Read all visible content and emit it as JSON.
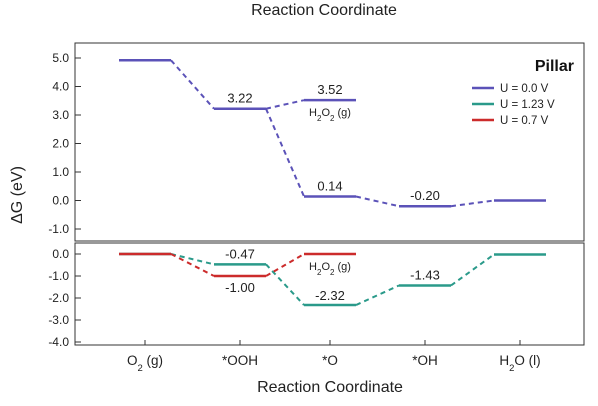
{
  "chart_data": {
    "type": "line",
    "top_title": "Reaction Coordinate",
    "xlabel": "Reaction Coordinate",
    "ylabel": "ΔG (eV)",
    "legend_title": "Pillar",
    "legend_placement": "top-right",
    "categories": [
      {
        "text": "O",
        "sub": "2",
        "tail": " (g)"
      },
      {
        "text": "*OOH",
        "sub": "",
        "tail": ""
      },
      {
        "text": "*O",
        "sub": "",
        "tail": ""
      },
      {
        "text": "*OH",
        "sub": "",
        "tail": ""
      },
      {
        "text": "H",
        "sub": "2",
        "tail": "O (l)"
      }
    ],
    "upper_panel": {
      "ylim": [
        -1.4,
        5.5
      ],
      "yticks": [
        "5.0",
        "4.0",
        "3.0",
        "2.0",
        "1.0",
        "0.0",
        "-1.0"
      ],
      "ytick_values": [
        5,
        4,
        3,
        2,
        1,
        0,
        -1
      ],
      "series": [
        {
          "legend_index": 0,
          "points": [
            {
              "x": 0,
              "y": 4.92
            },
            {
              "x": 1,
              "y": 3.22
            },
            {
              "x": 2,
              "y": 3.52
            },
            {
              "x": 2,
              "y": 0.14
            },
            {
              "x": 3,
              "y": -0.2
            },
            {
              "x": 4,
              "y": 0.0
            }
          ],
          "segments": [
            [
              0,
              1
            ],
            [
              1,
              2
            ],
            [
              1,
              3
            ],
            [
              3,
              4
            ],
            [
              4,
              5
            ]
          ]
        }
      ],
      "labels": [
        {
          "text": "3.22",
          "x": 1,
          "y": 3.22
        },
        {
          "text": "3.52",
          "x": 2,
          "y": 3.52
        },
        {
          "text": "0.14",
          "x": 2,
          "y": 0.14
        },
        {
          "text": "-0.20",
          "x": 3,
          "y": -0.2
        }
      ],
      "h2o2_label": {
        "pre": "H",
        "sub1": "2",
        "mid": "O",
        "sub2": "2",
        "post": " (g)",
        "x": 2,
        "y": 3.52
      }
    },
    "lower_panel": {
      "ylim": [
        -4.1,
        0.5
      ],
      "yticks": [
        "0.0",
        "-1.0",
        "-2.0",
        "-3.0",
        "-4.0"
      ],
      "ytick_values": [
        0,
        -1,
        -2,
        -3,
        -4
      ],
      "series": [
        {
          "legend_index": 1,
          "points": [
            {
              "x": 0,
              "y": 0.0
            },
            {
              "x": 1,
              "y": -0.47
            },
            {
              "x": 2,
              "y": -2.32
            },
            {
              "x": 3,
              "y": -1.43
            },
            {
              "x": 4,
              "y": -0.02
            }
          ],
          "segments": [
            [
              0,
              1
            ],
            [
              1,
              2
            ],
            [
              2,
              3
            ],
            [
              3,
              4
            ]
          ]
        },
        {
          "legend_index": 2,
          "points": [
            {
              "x": 0,
              "y": 0.0
            },
            {
              "x": 1,
              "y": -1.0
            },
            {
              "x": 2,
              "y": 0.0
            }
          ],
          "segments": [
            [
              0,
              1
            ],
            [
              1,
              2
            ]
          ]
        }
      ],
      "labels": [
        {
          "text": "-0.47",
          "x": 1,
          "y": -0.47
        },
        {
          "text": "-1.00",
          "x": 1,
          "y": -1.0
        },
        {
          "text": "-2.32",
          "x": 2,
          "y": -2.32
        },
        {
          "text": "-1.43",
          "x": 3,
          "y": -1.43
        }
      ],
      "h2o2_label": {
        "pre": "H",
        "sub1": "2",
        "mid": "O",
        "sub2": "2",
        "post": " (g)",
        "x": 2,
        "y": 0.0
      }
    },
    "legend": [
      {
        "label": "U = 0.0 V",
        "color": "#5b52b8"
      },
      {
        "label": "U = 1.23 V",
        "color": "#2a9a8a"
      },
      {
        "label": "U = 0.7 V",
        "color": "#cc2b2b"
      }
    ]
  }
}
